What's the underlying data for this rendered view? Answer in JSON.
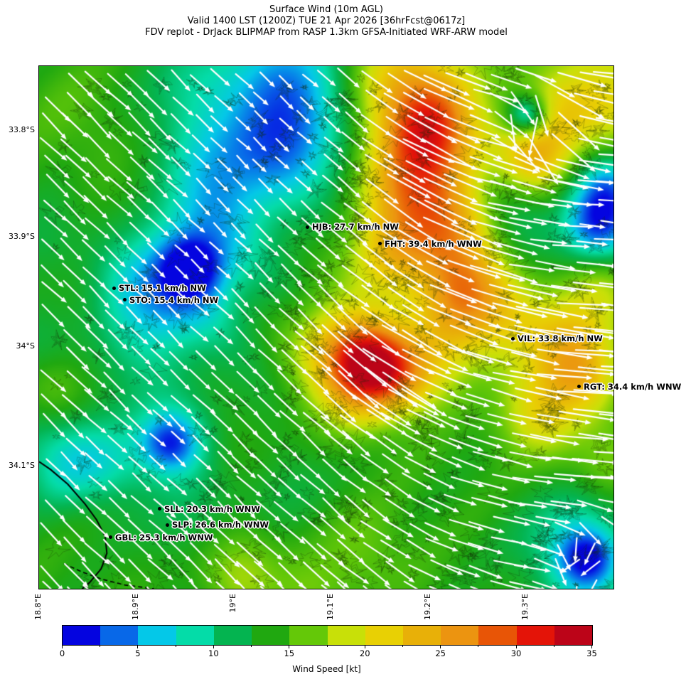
{
  "title": {
    "line1": "Surface Wind (10m AGL)",
    "line2": "Valid 1400 LST (1200Z) TUE 21 Apr 2026 [36hrFcst@0617z]",
    "line3": "FDV replot - DrJack BLIPMAP from RASP 1.3km GFSA-Initiated WRF-ARW model"
  },
  "chart_data": {
    "type": "heatmap",
    "subtype": "surface-wind-speed-field-with-vectors",
    "title": "Surface Wind (10m AGL)",
    "valid": "Valid 1400 LST (1200Z) TUE 21 Apr 2026 [36hrFcst@0617z]",
    "source": "FDV replot - DrJack BLIPMAP from RASP 1.3km GFSA-Initiated WRF-ARW model",
    "xticks": [
      {
        "label": "18.8°E",
        "x": 0.0
      },
      {
        "label": "18.9°E",
        "x": 0.1696
      },
      {
        "label": "19°E",
        "x": 0.3391
      },
      {
        "label": "19.1°E",
        "x": 0.5087
      },
      {
        "label": "19.2°E",
        "x": 0.6782
      },
      {
        "label": "19.3°E",
        "x": 0.8478
      }
    ],
    "yticks": [
      {
        "label": "33.8°S",
        "y": 0.1224
      },
      {
        "label": "33.9°S",
        "y": 0.3265
      },
      {
        "label": "34°S",
        "y": 0.5361
      },
      {
        "label": "34.1°S",
        "y": 0.7646
      }
    ],
    "stations": [
      {
        "id": "HJB",
        "speed_kmh": 27.7,
        "direction": "NW",
        "label": "HJB: 27.7 km/h NW",
        "x": 0.4678,
        "y": 0.3075
      },
      {
        "id": "FHT",
        "speed_kmh": 39.4,
        "direction": "WNW",
        "label": "FHT: 39.4 km/h WNW",
        "x": 0.5941,
        "y": 0.3401
      },
      {
        "id": "STL",
        "speed_kmh": 15.1,
        "direction": "NW",
        "label": "STL: 15.1 km/h NW",
        "x": 0.1312,
        "y": 0.4245
      },
      {
        "id": "STO",
        "speed_kmh": 15.4,
        "direction": "NW",
        "label": "STO: 15.4 km/h NW",
        "x": 0.1498,
        "y": 0.4476
      },
      {
        "id": "VIL",
        "speed_kmh": 33.8,
        "direction": "NW",
        "label": "VIL: 33.8 km/h NW",
        "x": 0.8255,
        "y": 0.5211
      },
      {
        "id": "RGT",
        "speed_kmh": 34.4,
        "direction": "WNW",
        "label": "RGT: 34.4 km/h WNW",
        "x": 0.9406,
        "y": 0.6136
      },
      {
        "id": "SLL",
        "speed_kmh": 20.3,
        "direction": "WNW",
        "label": "SLL: 20.3 km/h WNW",
        "x": 0.2104,
        "y": 0.8476
      },
      {
        "id": "SLP",
        "speed_kmh": 26.6,
        "direction": "WNW",
        "label": "SLP: 26.6 km/h WNW",
        "x": 0.224,
        "y": 0.8776
      },
      {
        "id": "GBL",
        "speed_kmh": 25.3,
        "direction": "WNW",
        "label": "GBL: 25.3 km/h WNW",
        "x": 0.125,
        "y": 0.902
      }
    ],
    "colorbar": {
      "label": "Wind Speed [kt]",
      "min": 0,
      "max": 35,
      "ticks": [
        0,
        5,
        10,
        15,
        20,
        25,
        30,
        35
      ],
      "colors": [
        "#0404e0",
        "#0868e8",
        "#04c8e8",
        "#04dca8",
        "#04b450",
        "#20a810",
        "#64c808",
        "#c8e008",
        "#e8d004",
        "#e8b008",
        "#ec9410",
        "#e85506",
        "#e41408",
        "#bc0418"
      ]
    },
    "wind_field": {
      "base_kt": 13,
      "blobs": [
        [
          0.37,
          0.07,
          -6,
          0.1
        ],
        [
          0.33,
          0.2,
          -5,
          0.09
        ],
        [
          0.47,
          0.04,
          -4.5,
          0.07
        ],
        [
          0.43,
          0.15,
          -4,
          0.08
        ],
        [
          0.28,
          0.32,
          -3,
          0.07
        ],
        [
          0.265,
          0.385,
          -9,
          0.042
        ],
        [
          0.26,
          0.41,
          -5,
          0.085
        ],
        [
          0.2,
          0.49,
          -4,
          0.07
        ],
        [
          0.145,
          0.43,
          -3.5,
          0.06
        ],
        [
          0.03,
          0.75,
          -5.5,
          0.065
        ],
        [
          0.115,
          0.77,
          -4,
          0.06
        ],
        [
          0.228,
          0.722,
          -8,
          0.038
        ],
        [
          0.235,
          0.73,
          -4,
          0.07
        ],
        [
          0.645,
          0.04,
          10,
          0.075
        ],
        [
          0.69,
          0.13,
          12,
          0.07
        ],
        [
          0.655,
          0.24,
          11,
          0.075
        ],
        [
          0.71,
          0.32,
          9,
          0.065
        ],
        [
          0.615,
          0.36,
          7,
          0.055
        ],
        [
          0.74,
          0.42,
          7.5,
          0.06
        ],
        [
          0.7,
          0.51,
          6,
          0.06
        ],
        [
          0.66,
          0.59,
          5,
          0.055
        ],
        [
          0.862,
          0.18,
          9,
          0.05
        ],
        [
          0.96,
          0.04,
          7,
          0.09
        ],
        [
          0.9,
          0.1,
          4,
          0.06
        ],
        [
          0.852,
          0.093,
          -11,
          0.028
        ],
        [
          0.8,
          0.23,
          -3.5,
          0.055
        ],
        [
          0.845,
          0.31,
          -2.5,
          0.05
        ],
        [
          0.985,
          0.27,
          -9,
          0.048
        ],
        [
          0.965,
          0.33,
          -6,
          0.045
        ],
        [
          0.995,
          0.21,
          -5,
          0.04
        ],
        [
          0.575,
          0.565,
          9,
          0.05
        ],
        [
          0.545,
          0.545,
          6.5,
          0.065
        ],
        [
          0.61,
          0.59,
          7,
          0.055
        ],
        [
          0.555,
          0.63,
          5,
          0.06
        ],
        [
          0.51,
          0.52,
          4,
          0.07
        ],
        [
          0.8,
          0.46,
          5,
          0.075
        ],
        [
          0.885,
          0.545,
          5,
          0.07
        ],
        [
          0.955,
          0.51,
          6,
          0.06
        ],
        [
          0.875,
          0.655,
          4,
          0.065
        ],
        [
          0.945,
          0.6,
          6,
          0.05
        ],
        [
          0.97,
          0.42,
          4,
          0.05
        ],
        [
          0.958,
          0.945,
          -10,
          0.04
        ],
        [
          0.945,
          0.935,
          -5,
          0.08
        ],
        [
          0.875,
          0.68,
          4,
          0.055
        ],
        [
          0.99,
          0.78,
          3,
          0.05
        ],
        [
          0.35,
          0.99,
          3.5,
          0.055
        ],
        [
          0.47,
          1.01,
          4,
          0.055
        ],
        [
          0.57,
          0.93,
          2.5,
          0.06
        ],
        [
          0.015,
          0.62,
          2.5,
          0.045
        ],
        [
          0.07,
          0.1,
          1.5,
          0.07
        ]
      ]
    },
    "arrows": {
      "grid_spacing_px": 30,
      "flow": "NW wind on west side veering WNW on east side; arrows point downwind (SE to ESE)",
      "angle_west_deg": 44,
      "angle_east_deg": 6
    },
    "coastline": {
      "solid": [
        [
          0.0,
          0.757
        ],
        [
          0.02,
          0.772
        ],
        [
          0.05,
          0.8
        ],
        [
          0.08,
          0.838
        ],
        [
          0.1,
          0.868
        ],
        [
          0.115,
          0.9
        ],
        [
          0.118,
          0.932
        ],
        [
          0.108,
          0.962
        ],
        [
          0.088,
          0.988
        ],
        [
          0.075,
          1.0
        ]
      ],
      "dashed": [
        [
          0.043,
          0.952
        ],
        [
          0.075,
          0.968
        ],
        [
          0.11,
          0.982
        ],
        [
          0.15,
          0.993
        ],
        [
          0.2,
          1.0
        ]
      ]
    }
  }
}
